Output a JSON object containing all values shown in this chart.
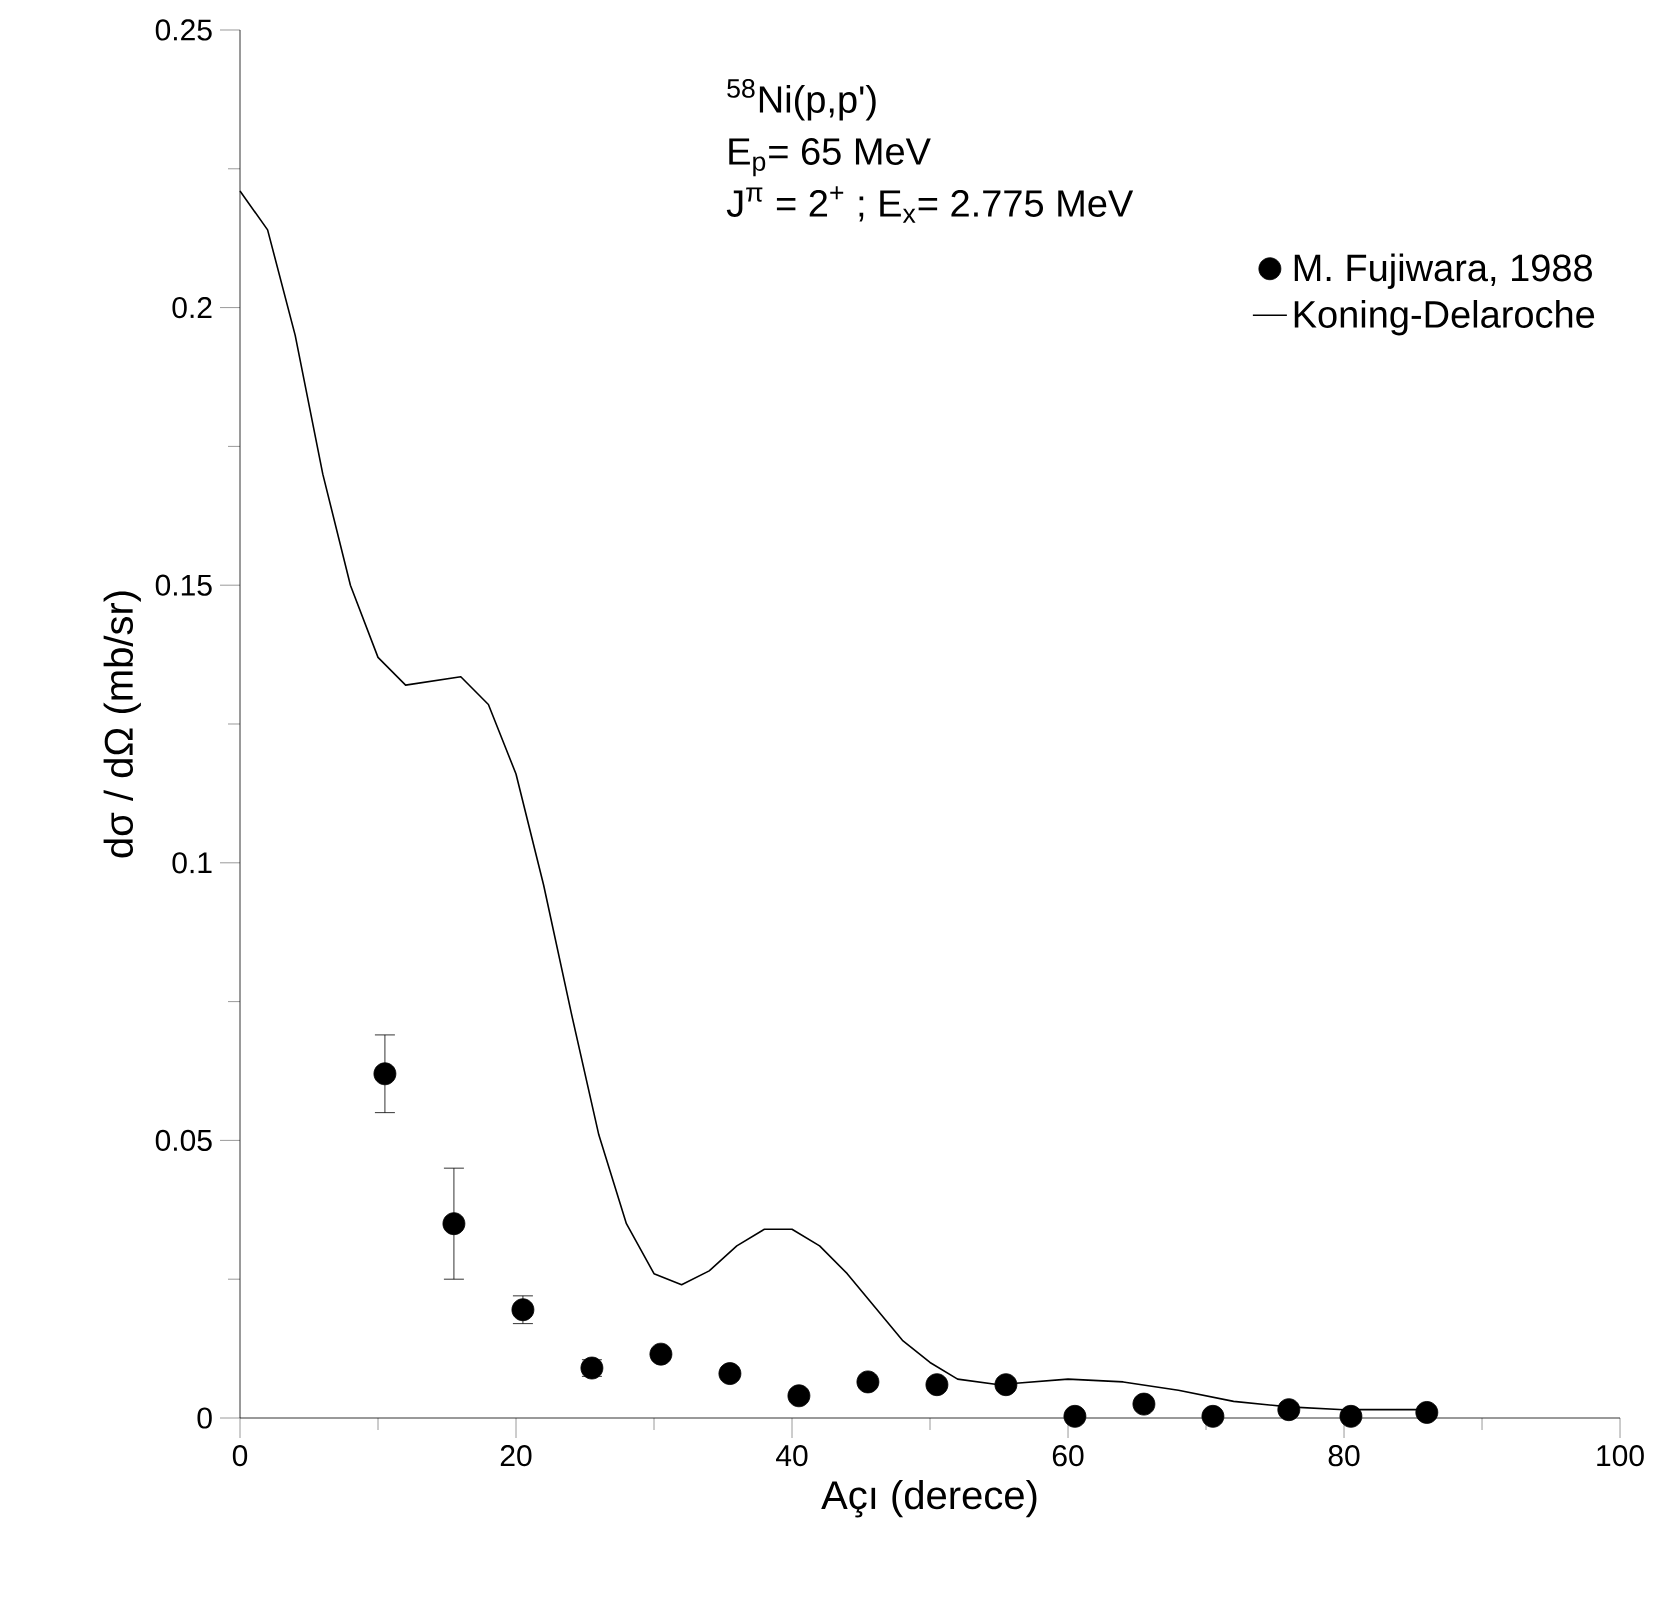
{
  "chart_data": {
    "type": "scatter",
    "xlabel": "Açı (derece)",
    "ylabel": "dσ / dΩ (mb/sr)",
    "annotations": [
      "$^{58}$Ni(p,p')",
      "E$_{p}$= 65 MeV",
      "J$^{π}$ = 2$^{+}$ ; E$_{x}$= 2.775 MeV"
    ],
    "xlim": [
      0,
      100
    ],
    "xticks": [
      0,
      20,
      40,
      60,
      80,
      100
    ],
    "ylim": [
      0,
      0.25
    ],
    "yticks": [
      0,
      0.05,
      0.1,
      0.15,
      0.2,
      0.25
    ],
    "grid": false,
    "legend": "top right",
    "series": [
      {
        "name": "M. Fujiwara, 1988",
        "marker": "circle",
        "color": "#000000",
        "x": [
          10.5,
          15.5,
          20.5,
          25.5,
          30.5,
          35.5,
          40.5,
          45.5,
          50.5,
          55.5,
          60.5,
          65.5,
          70.5,
          76,
          80.5,
          86
        ],
        "values": [
          0.062,
          0.035,
          0.0195,
          0.009,
          0.0115,
          0.008,
          0.004,
          0.0065,
          0.006,
          0.006,
          0.0003,
          0.0025,
          0.0003,
          0.0015,
          0.0003,
          0.001
        ],
        "errors": [
          0.007,
          0.01,
          0.0025,
          0.0015,
          null,
          null,
          null,
          null,
          null,
          null,
          null,
          null,
          null,
          null,
          null,
          null
        ]
      },
      {
        "name": "Koning-Delaroche",
        "type": "line",
        "marker": "none",
        "line_style": "solid",
        "color": "#000000",
        "x": [
          0,
          2,
          4,
          6,
          8,
          10,
          12,
          16,
          18,
          20,
          22,
          24,
          26,
          28,
          30,
          32,
          34,
          36,
          38,
          40,
          42,
          44,
          46,
          48,
          50,
          52,
          55,
          60,
          64,
          68,
          72,
          76,
          80,
          86
        ],
        "values": [
          0.221,
          0.214,
          0.195,
          0.17,
          0.15,
          0.137,
          0.132,
          0.1335,
          0.1285,
          0.116,
          0.096,
          0.073,
          0.051,
          0.035,
          0.026,
          0.024,
          0.0265,
          0.031,
          0.034,
          0.034,
          0.031,
          0.026,
          0.02,
          0.014,
          0.01,
          0.007,
          0.006,
          0.007,
          0.0065,
          0.005,
          0.003,
          0.002,
          0.0015,
          0.0015
        ]
      }
    ]
  }
}
